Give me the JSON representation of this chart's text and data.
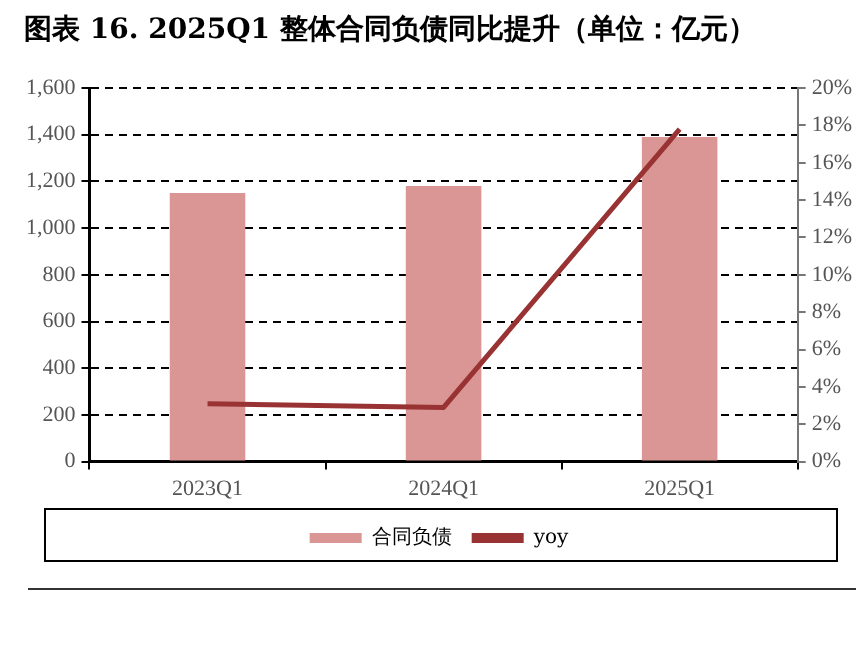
{
  "chart_data": {
    "type": "bar",
    "title": "图表 16. 2025Q1 整体合同负债同比提升（单位：亿元）",
    "categories": [
      "2023Q1",
      "2024Q1",
      "2025Q1"
    ],
    "series": [
      {
        "name": "合同负债",
        "color": "#d99694",
        "values": [
          1150,
          1180,
          1390
        ]
      },
      {
        "name": "yoy",
        "type": "line",
        "axis": "y2",
        "color": "#993333",
        "values": [
          3.1,
          2.9,
          17.8
        ]
      }
    ],
    "ylim": [
      0,
      1600
    ],
    "yticks": [
      0,
      200,
      400,
      600,
      800,
      {
        "value": 1000,
        "label": "1,000"
      },
      {
        "value": 1200,
        "label": "1,200"
      },
      {
        "value": 1400,
        "label": "1,400"
      },
      {
        "value": 1600,
        "label": "1,600"
      }
    ],
    "y2lim": [
      0,
      20
    ],
    "y2ticks": [
      {
        "value": 0,
        "label": "0%"
      },
      {
        "value": 2,
        "label": "2%"
      },
      {
        "value": 4,
        "label": "4%"
      },
      {
        "value": 6,
        "label": "6%"
      },
      {
        "value": 8,
        "label": "8%"
      },
      {
        "value": 10,
        "label": "10%"
      },
      {
        "value": 12,
        "label": "12%"
      },
      {
        "value": 14,
        "label": "14%"
      },
      {
        "value": 16,
        "label": "16%"
      },
      {
        "value": 18,
        "label": "18%"
      },
      {
        "value": 20,
        "label": "20%"
      }
    ],
    "grid": "y",
    "legend": "bottom",
    "marker": "none"
  }
}
